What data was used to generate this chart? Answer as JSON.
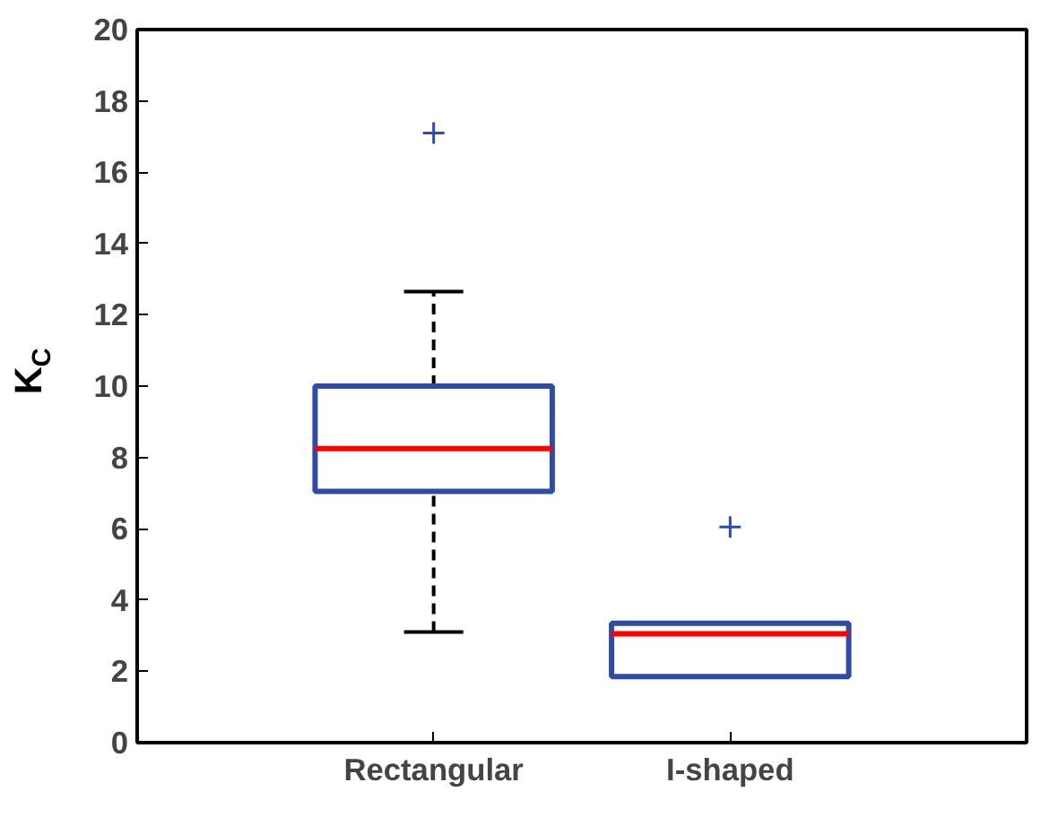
{
  "chart_data": {
    "type": "box",
    "ylabel": "K$_{C}$",
    "categories": [
      "Rectangular",
      "I-shaped"
    ],
    "series": [
      {
        "color": "#2e4ca6",
        "boxes": [
          {
            "low": 3.1,
            "q1": 7.05,
            "median": 8.25,
            "q3": 10.0,
            "high": 12.65,
            "outliers": [
              17.1
            ]
          },
          {
            "low": 1.85,
            "q1": 1.85,
            "median": 3.05,
            "q3": 3.35,
            "high": 3.35,
            "outliers": [
              6.05
            ]
          }
        ]
      }
    ],
    "ylim": [
      0,
      20
    ],
    "yticks": [
      0,
      2,
      4,
      6,
      8,
      10,
      12,
      14,
      16,
      18,
      20
    ],
    "grid": false
  }
}
